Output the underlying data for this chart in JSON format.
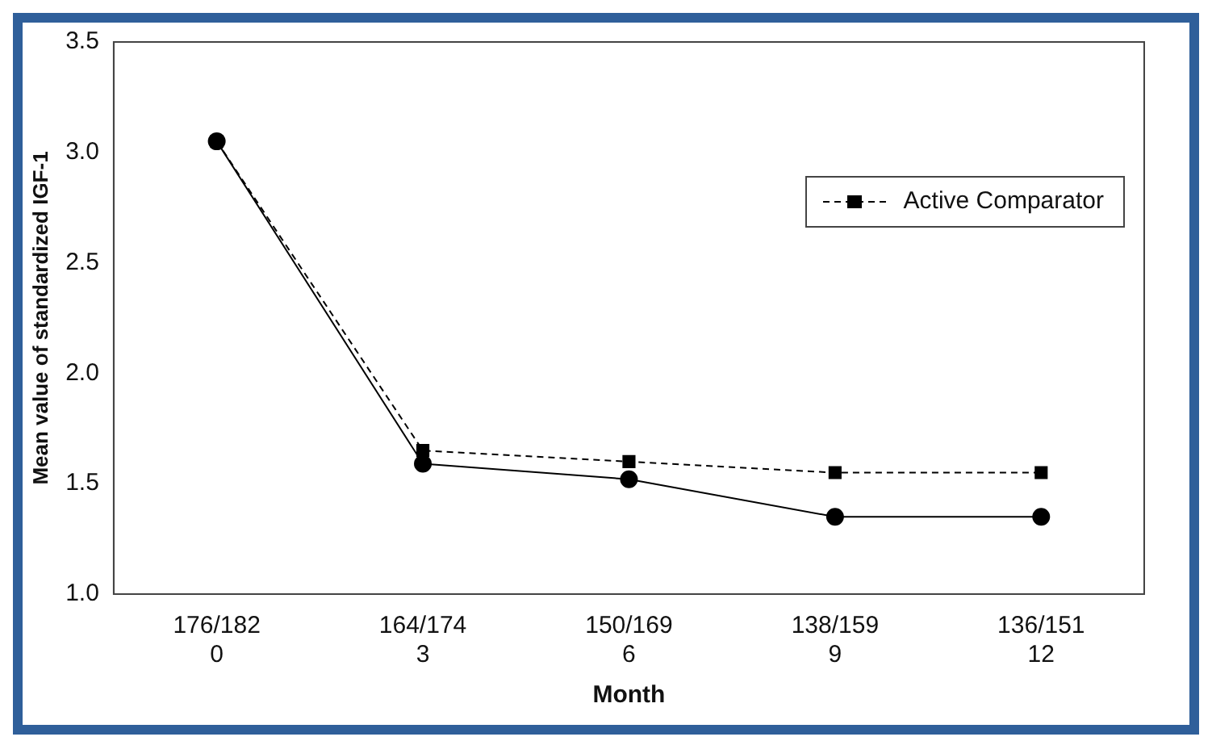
{
  "chart_data": {
    "type": "line",
    "xlabel": "Month",
    "ylabel": "Mean value of standardized IGF-1",
    "categories": [
      "176/182\n0",
      "164/174\n3",
      "150/169\n6",
      "138/159\n9",
      "136/151\n12"
    ],
    "series": [
      {
        "color": "#000000",
        "values": [
          3.05,
          1.59,
          1.52,
          1.35,
          1.35
        ],
        "marker": "circle",
        "line_style": "solid"
      },
      {
        "name": "Active Comparator",
        "color": "#000000",
        "values": [
          3.05,
          1.65,
          1.6,
          1.55,
          1.55
        ],
        "marker": "square",
        "line_style": "dashed"
      }
    ],
    "ylim": [
      1.0,
      3.5
    ],
    "yticks": [
      {
        "value": 1.0,
        "label": "1.0"
      },
      {
        "value": 1.5,
        "label": "1.5"
      },
      {
        "value": 2.0,
        "label": "2.0"
      },
      {
        "value": 2.5,
        "label": "2.5"
      },
      {
        "value": 3.0,
        "label": "3.0"
      },
      {
        "value": 3.5,
        "label": "3.5"
      }
    ],
    "grid": false,
    "legend": "top right"
  }
}
